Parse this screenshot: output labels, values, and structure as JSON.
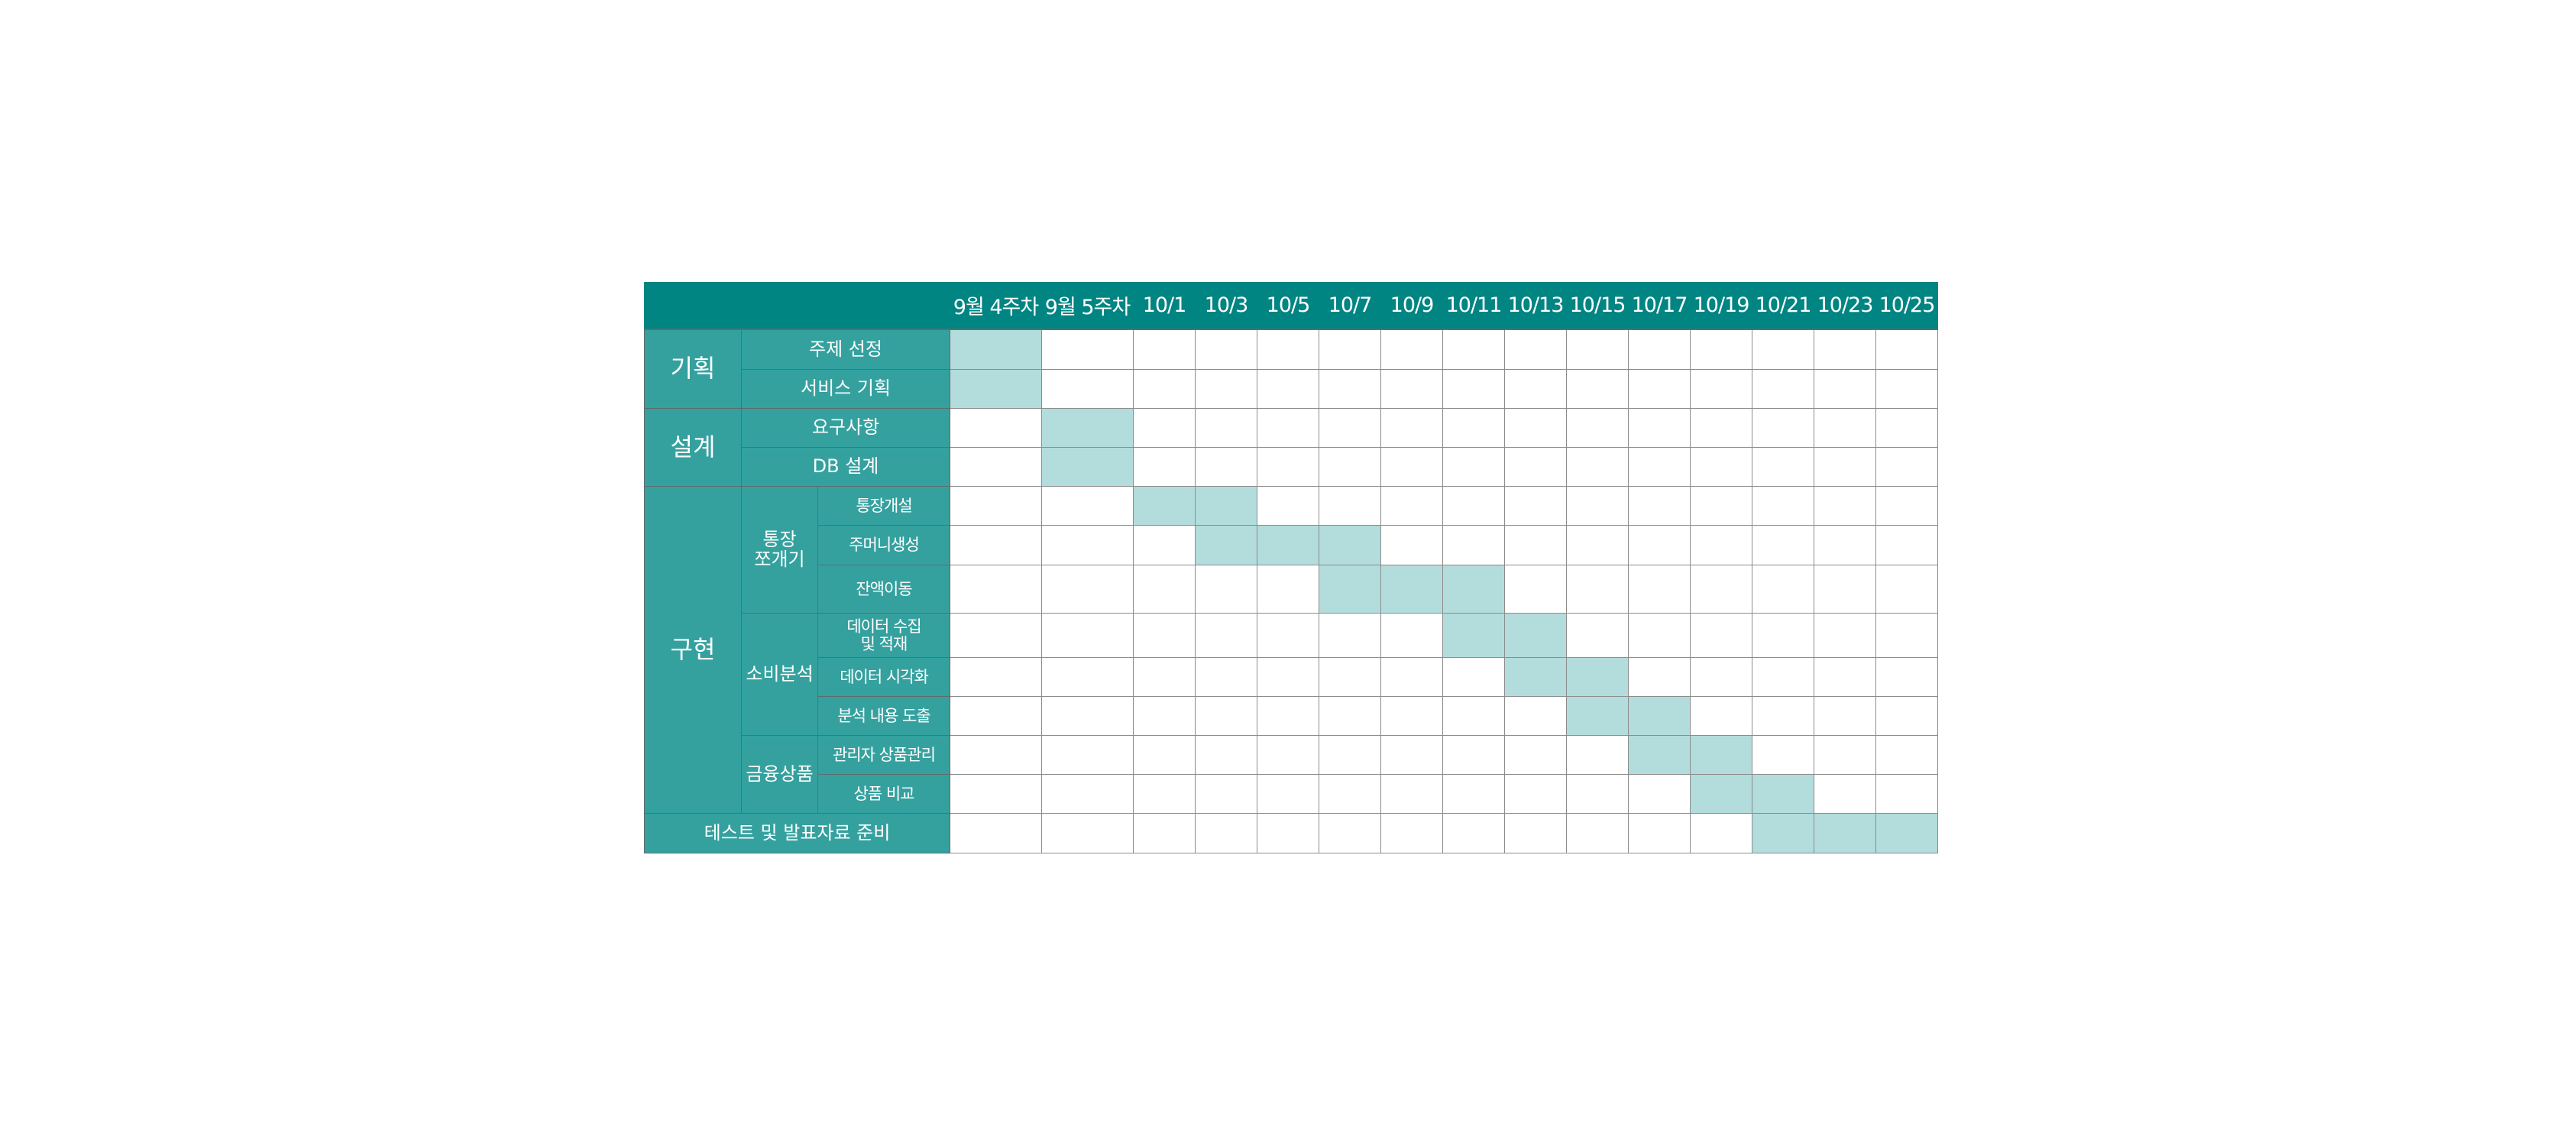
{
  "header": {
    "dates": [
      "9월 4주차",
      "9월 5주차",
      "10/1",
      "10/3",
      "10/5",
      "10/7",
      "10/9",
      "10/11",
      "10/13",
      "10/15",
      "10/17",
      "10/19",
      "10/21",
      "10/23",
      "10/25"
    ]
  },
  "phases": [
    {
      "label": "기획",
      "tasks": [
        {
          "label": "주제 선정",
          "active": [
            1,
            0,
            0,
            0,
            0,
            0,
            0,
            0,
            0,
            0,
            0,
            0,
            0,
            0,
            0
          ]
        },
        {
          "label": "서비스 기획",
          "active": [
            1,
            0,
            0,
            0,
            0,
            0,
            0,
            0,
            0,
            0,
            0,
            0,
            0,
            0,
            0
          ]
        }
      ]
    },
    {
      "label": "설계",
      "tasks": [
        {
          "label": "요구사항",
          "active": [
            0,
            1,
            0,
            0,
            0,
            0,
            0,
            0,
            0,
            0,
            0,
            0,
            0,
            0,
            0
          ]
        },
        {
          "label": "DB 설계",
          "active": [
            0,
            1,
            0,
            0,
            0,
            0,
            0,
            0,
            0,
            0,
            0,
            0,
            0,
            0,
            0
          ]
        }
      ]
    },
    {
      "label": "구현",
      "groups": [
        {
          "label": "통장\n쪼개기",
          "tasks": [
            {
              "label": "통장개설",
              "active": [
                0,
                0,
                1,
                1,
                0,
                0,
                0,
                0,
                0,
                0,
                0,
                0,
                0,
                0,
                0
              ]
            },
            {
              "label": "주머니생성",
              "active": [
                0,
                0,
                0,
                1,
                1,
                1,
                0,
                0,
                0,
                0,
                0,
                0,
                0,
                0,
                0
              ]
            },
            {
              "label": "잔액이동",
              "active": [
                0,
                0,
                0,
                0,
                0,
                1,
                1,
                1,
                0,
                0,
                0,
                0,
                0,
                0,
                0
              ]
            }
          ]
        },
        {
          "label": "소비분석",
          "tasks": [
            {
              "label": "데이터 수집\n및 적재",
              "active": [
                0,
                0,
                0,
                0,
                0,
                0,
                0,
                1,
                1,
                0,
                0,
                0,
                0,
                0,
                0
              ]
            },
            {
              "label": "데이터 시각화",
              "active": [
                0,
                0,
                0,
                0,
                0,
                0,
                0,
                0,
                1,
                1,
                0,
                0,
                0,
                0,
                0
              ]
            },
            {
              "label": "분석 내용 도출",
              "active": [
                0,
                0,
                0,
                0,
                0,
                0,
                0,
                0,
                0,
                1,
                1,
                0,
                0,
                0,
                0
              ]
            }
          ]
        },
        {
          "label": "금융상품",
          "tasks": [
            {
              "label": "관리자 상품관리",
              "active": [
                0,
                0,
                0,
                0,
                0,
                0,
                0,
                0,
                0,
                0,
                1,
                1,
                0,
                0,
                0
              ]
            },
            {
              "label": "상품 비교",
              "active": [
                0,
                0,
                0,
                0,
                0,
                0,
                0,
                0,
                0,
                0,
                0,
                1,
                1,
                0,
                0
              ]
            }
          ]
        }
      ]
    },
    {
      "label": "테스트 및 발표자료 준비",
      "active": [
        0,
        0,
        0,
        0,
        0,
        0,
        0,
        0,
        0,
        0,
        0,
        0,
        1,
        1,
        1
      ]
    }
  ],
  "colors": {
    "header_bg": "#018583",
    "label_bg": "#35a19f",
    "active_cell": "#b3dcdc",
    "grid_line": "#8c8c8c"
  }
}
